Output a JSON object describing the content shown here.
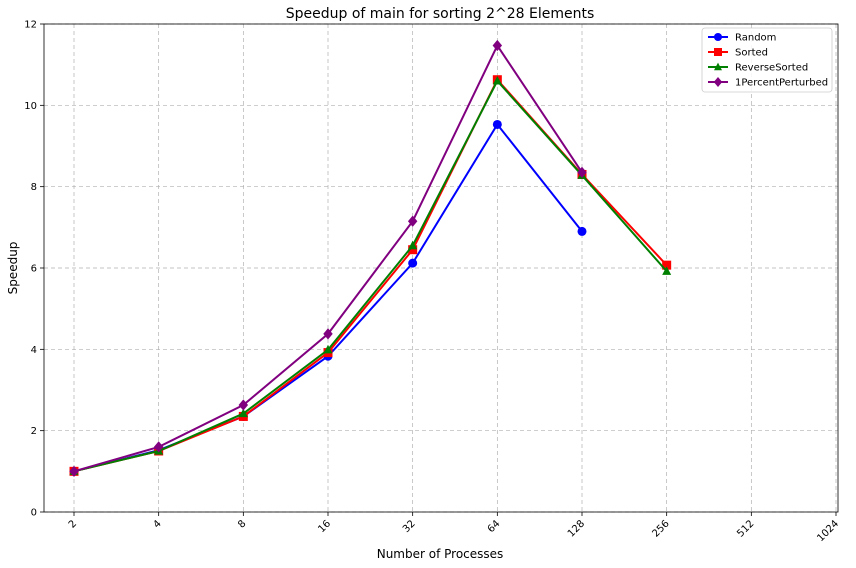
{
  "chart_data": {
    "type": "line",
    "title": "Speedup of main for sorting 2^28 Elements",
    "xlabel": "Number of Processes",
    "ylabel": "Speedup",
    "x_scale": "log2",
    "x_ticks": [
      "2",
      "4",
      "8",
      "16",
      "32",
      "64",
      "128",
      "256",
      "512",
      "1024"
    ],
    "y_ticks": [
      "0",
      "2",
      "4",
      "6",
      "8",
      "10",
      "12"
    ],
    "ylim": [
      0,
      12
    ],
    "grid": true,
    "legend_position": "top-right",
    "series": [
      {
        "name": "Random",
        "color": "#0000ff",
        "marker": "circle",
        "x": [
          2,
          4,
          8,
          16,
          32,
          64,
          128
        ],
        "y": [
          1.0,
          1.52,
          2.35,
          3.83,
          6.12,
          9.53,
          6.9
        ]
      },
      {
        "name": "Sorted",
        "color": "#ff0000",
        "marker": "square",
        "x": [
          2,
          4,
          8,
          16,
          32,
          64,
          128,
          256
        ],
        "y": [
          1.0,
          1.5,
          2.35,
          3.92,
          6.45,
          10.63,
          8.3,
          6.07
        ]
      },
      {
        "name": "ReverseSorted",
        "color": "#008000",
        "marker": "triangle",
        "x": [
          2,
          4,
          8,
          16,
          32,
          64,
          128,
          256
        ],
        "y": [
          1.0,
          1.5,
          2.42,
          3.99,
          6.55,
          10.6,
          8.28,
          5.92
        ]
      },
      {
        "name": "1PercentPerturbed",
        "color": "#800080",
        "marker": "diamond",
        "x": [
          2,
          4,
          8,
          16,
          32,
          64,
          128
        ],
        "y": [
          1.0,
          1.6,
          2.63,
          4.38,
          7.15,
          11.47,
          8.35
        ]
      }
    ]
  }
}
